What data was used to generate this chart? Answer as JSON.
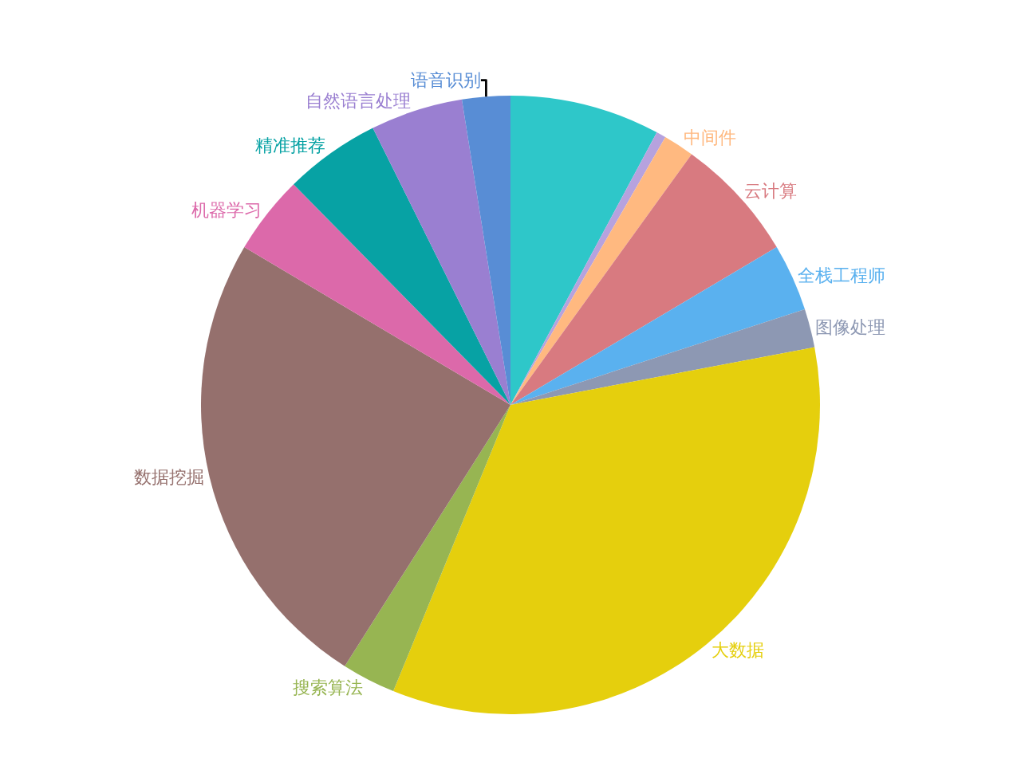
{
  "chart_data": {
    "type": "pie",
    "categories": [
      null,
      null,
      "中间件",
      "云计算",
      "全栈工程师",
      "图像处理",
      "大数据",
      "搜索算法",
      "数据挖掘",
      "机器学习",
      "精准推荐",
      "自然语言处理",
      "语音识别"
    ],
    "values": [
      7.8,
      0.5,
      1.6,
      6.5,
      3.5,
      2,
      34,
      2.8,
      24.4,
      4.1,
      5,
      4.8,
      2.5
    ],
    "colors": [
      "#2ec7c9",
      "#b6a2de",
      "#ffb980",
      "#d87a80",
      "#5ab1ef",
      "#8d98b3",
      "#e5cf0d",
      "#97b552",
      "#95706d",
      "#dc69aa",
      "#07a2a4",
      "#9a7fd1",
      "#588dd5"
    ],
    "legend": false
  }
}
